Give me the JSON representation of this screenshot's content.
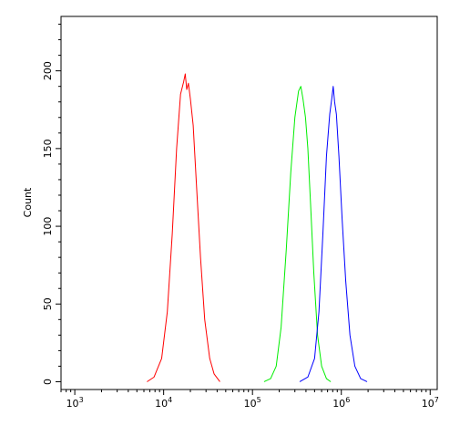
{
  "chart_data": {
    "type": "line",
    "title": "",
    "xlabel": "",
    "ylabel": "Count",
    "xscale": "log",
    "xlim": [
      700,
      12000000
    ],
    "ylim": [
      -5,
      235
    ],
    "grid": false,
    "legend": "none",
    "x_ticks": [
      {
        "value": 1000,
        "base": "10",
        "exp": "3"
      },
      {
        "value": 10000,
        "base": "10",
        "exp": "4"
      },
      {
        "value": 100000,
        "base": "10",
        "exp": "5"
      },
      {
        "value": 1000000,
        "base": "10",
        "exp": "6"
      },
      {
        "value": 10000000,
        "base": "10",
        "exp": "7"
      }
    ],
    "y_ticks": [
      {
        "value": 0,
        "label": "0"
      },
      {
        "value": 50,
        "label": "50"
      },
      {
        "value": 100,
        "label": "100"
      },
      {
        "value": 150,
        "label": "150"
      },
      {
        "value": 200,
        "label": "200"
      }
    ],
    "series": [
      {
        "color": "#ff0000",
        "points": [
          [
            6500,
            0
          ],
          [
            7800,
            3
          ],
          [
            9500,
            15
          ],
          [
            11000,
            45
          ],
          [
            12500,
            95
          ],
          [
            14000,
            150
          ],
          [
            15500,
            185
          ],
          [
            16800,
            193
          ],
          [
            17500,
            198
          ],
          [
            18200,
            188
          ],
          [
            19000,
            192
          ],
          [
            20000,
            182
          ],
          [
            21500,
            165
          ],
          [
            23500,
            125
          ],
          [
            26000,
            80
          ],
          [
            29000,
            40
          ],
          [
            33000,
            15
          ],
          [
            37000,
            5
          ],
          [
            43000,
            0
          ]
        ]
      },
      {
        "color": "#00ee00",
        "points": [
          [
            135000,
            0
          ],
          [
            160000,
            2
          ],
          [
            185000,
            10
          ],
          [
            210000,
            35
          ],
          [
            240000,
            85
          ],
          [
            270000,
            135
          ],
          [
            300000,
            170
          ],
          [
            330000,
            187
          ],
          [
            350000,
            190
          ],
          [
            370000,
            182
          ],
          [
            395000,
            170
          ],
          [
            420000,
            150
          ],
          [
            450000,
            115
          ],
          [
            490000,
            70
          ],
          [
            540000,
            30
          ],
          [
            600000,
            10
          ],
          [
            680000,
            2
          ],
          [
            760000,
            0
          ]
        ]
      },
      {
        "color": "#0000ff",
        "points": [
          [
            340000,
            0
          ],
          [
            420000,
            3
          ],
          [
            500000,
            15
          ],
          [
            560000,
            45
          ],
          [
            620000,
            95
          ],
          [
            680000,
            145
          ],
          [
            740000,
            172
          ],
          [
            780000,
            182
          ],
          [
            810000,
            190
          ],
          [
            840000,
            180
          ],
          [
            880000,
            172
          ],
          [
            940000,
            145
          ],
          [
            1020000,
            105
          ],
          [
            1120000,
            65
          ],
          [
            1250000,
            30
          ],
          [
            1420000,
            10
          ],
          [
            1650000,
            2
          ],
          [
            1950000,
            0
          ]
        ]
      }
    ]
  }
}
